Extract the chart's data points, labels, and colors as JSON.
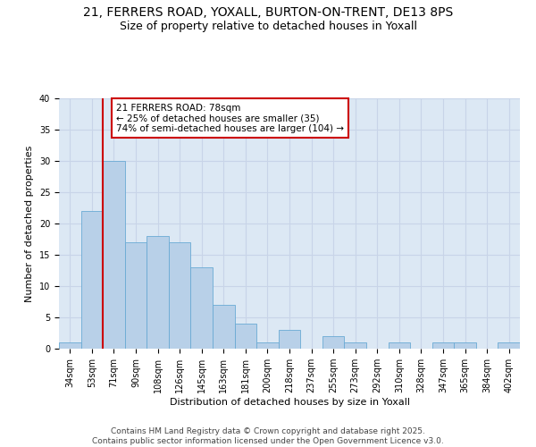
{
  "title_line1": "21, FERRERS ROAD, YOXALL, BURTON-ON-TRENT, DE13 8PS",
  "title_line2": "Size of property relative to detached houses in Yoxall",
  "xlabel": "Distribution of detached houses by size in Yoxall",
  "ylabel": "Number of detached properties",
  "categories": [
    "34sqm",
    "53sqm",
    "71sqm",
    "90sqm",
    "108sqm",
    "126sqm",
    "145sqm",
    "163sqm",
    "181sqm",
    "200sqm",
    "218sqm",
    "237sqm",
    "255sqm",
    "273sqm",
    "292sqm",
    "310sqm",
    "328sqm",
    "347sqm",
    "365sqm",
    "384sqm",
    "402sqm"
  ],
  "values": [
    1,
    22,
    30,
    17,
    18,
    17,
    13,
    7,
    4,
    1,
    3,
    0,
    2,
    1,
    0,
    1,
    0,
    1,
    1,
    0,
    1
  ],
  "bar_color": "#b8d0e8",
  "bar_edge_color": "#6aaad4",
  "vline_color": "#cc0000",
  "annotation_text": "21 FERRERS ROAD: 78sqm\n← 25% of detached houses are smaller (35)\n74% of semi-detached houses are larger (104) →",
  "annotation_box_color": "#ffffff",
  "annotation_box_edge": "#cc0000",
  "ylim": [
    0,
    40
  ],
  "yticks": [
    0,
    5,
    10,
    15,
    20,
    25,
    30,
    35,
    40
  ],
  "grid_color": "#c8d4e8",
  "background_color": "#dce8f4",
  "footer": "Contains HM Land Registry data © Crown copyright and database right 2025.\nContains public sector information licensed under the Open Government Licence v3.0.",
  "title_fontsize": 10,
  "subtitle_fontsize": 9,
  "axis_label_fontsize": 8,
  "tick_fontsize": 7,
  "annotation_fontsize": 7.5,
  "footer_fontsize": 6.5
}
